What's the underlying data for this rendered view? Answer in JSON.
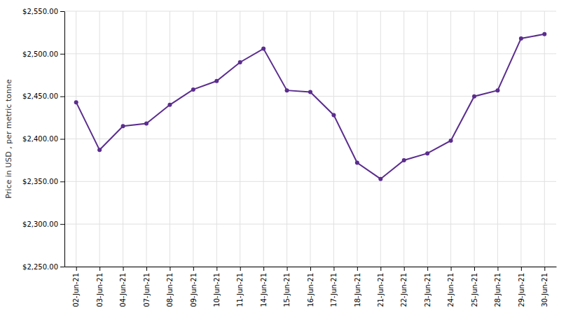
{
  "chart_data": {
    "type": "line",
    "categories": [
      "02-Jun-21",
      "03-Jun-21",
      "04-Jun-21",
      "07-Jun-21",
      "08-Jun-21",
      "09-Jun-21",
      "10-Jun-21",
      "11-Jun-21",
      "14-Jun-21",
      "15-Jun-21",
      "16-Jun-21",
      "17-Jun-21",
      "18-Jun-21",
      "21-Jun-21",
      "22-Jun-21",
      "23-Jun-21",
      "24-Jun-21",
      "25-Jun-21",
      "28-Jun-21",
      "29-Jun-21",
      "30-Jun-21"
    ],
    "values": [
      2443,
      2387,
      2415,
      2418,
      2440,
      2458,
      2468,
      2490,
      2506,
      2457,
      2455,
      2428,
      2372,
      2353,
      2375,
      2383,
      2398,
      2450,
      2457,
      2518,
      2523
    ],
    "ylabel": "Price in USD , per metric tonne",
    "color": "#5b2d8e",
    "marker": "circle",
    "ylim": [
      2250,
      2550
    ],
    "yticks": [
      {
        "value": 2250,
        "label": "$2,250.00"
      },
      {
        "value": 2300,
        "label": "$2,300.00"
      },
      {
        "value": 2350,
        "label": "$2,350.00"
      },
      {
        "value": 2400,
        "label": "$2,400.00"
      },
      {
        "value": 2450,
        "label": "$2,450.00"
      },
      {
        "value": 2500,
        "label": "$2,500.00"
      },
      {
        "value": 2550,
        "label": "$2,550.00"
      }
    ],
    "grid": true
  }
}
